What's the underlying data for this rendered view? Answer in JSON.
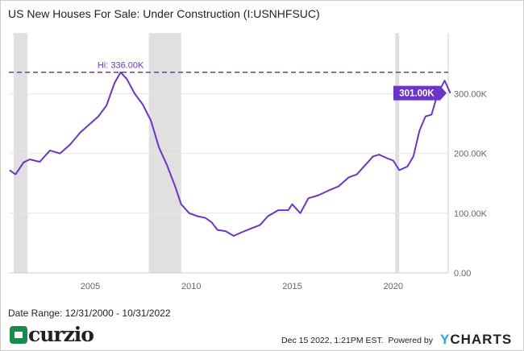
{
  "title": "US New Houses For Sale: Under Construction (I:USNHFSUC)",
  "footer": {
    "date_range": "Date Range: 12/31/2000 - 10/31/2022",
    "timestamp": "Dec 15 2022, 1:21PM EST.",
    "powered_by": "Powered by",
    "brand_y": "Y",
    "brand_rest": "CHARTS",
    "logo_text": "curzio"
  },
  "colors": {
    "line": "#6c35c9",
    "recession": "#e0e0e0",
    "grid": "#e6e6e6"
  },
  "chart_data": {
    "type": "line",
    "title": "US New Houses For Sale: Under Construction (I:USNHFSUC)",
    "x_ticks": [
      "2005",
      "2010",
      "2015",
      "2020"
    ],
    "y_ticks": [
      "0.00",
      "100.00K",
      "200.00K",
      "300.00K"
    ],
    "ylim": [
      0,
      350
    ],
    "xlim": [
      2000.9,
      2022.9
    ],
    "grid": true,
    "high_label": "Hi: 336.00K",
    "high_value": 336,
    "last_label": "301.00K",
    "last_value": 301,
    "recessions": [
      [
        2001.2,
        2001.9
      ],
      [
        2007.9,
        2009.5
      ],
      [
        2020.1,
        2020.3
      ]
    ],
    "series": [
      {
        "unit": "K",
        "points": [
          [
            2001.0,
            172
          ],
          [
            2001.3,
            165
          ],
          [
            2001.7,
            185
          ],
          [
            2002.0,
            190
          ],
          [
            2002.5,
            186
          ],
          [
            2003.0,
            205
          ],
          [
            2003.5,
            200
          ],
          [
            2004.0,
            215
          ],
          [
            2004.5,
            235
          ],
          [
            2005.0,
            250
          ],
          [
            2005.4,
            262
          ],
          [
            2005.8,
            280
          ],
          [
            2006.2,
            318
          ],
          [
            2006.5,
            336
          ],
          [
            2006.8,
            325
          ],
          [
            2007.2,
            300
          ],
          [
            2007.6,
            282
          ],
          [
            2008.0,
            255
          ],
          [
            2008.4,
            210
          ],
          [
            2008.8,
            180
          ],
          [
            2009.2,
            145
          ],
          [
            2009.5,
            115
          ],
          [
            2009.9,
            100
          ],
          [
            2010.3,
            95
          ],
          [
            2010.7,
            92
          ],
          [
            2011.0,
            85
          ],
          [
            2011.3,
            72
          ],
          [
            2011.7,
            70
          ],
          [
            2012.1,
            62
          ],
          [
            2012.5,
            68
          ],
          [
            2013.0,
            75
          ],
          [
            2013.4,
            80
          ],
          [
            2013.8,
            95
          ],
          [
            2014.3,
            105
          ],
          [
            2014.8,
            105
          ],
          [
            2015.0,
            115
          ],
          [
            2015.4,
            100
          ],
          [
            2015.8,
            125
          ],
          [
            2016.3,
            130
          ],
          [
            2016.8,
            138
          ],
          [
            2017.3,
            145
          ],
          [
            2017.8,
            160
          ],
          [
            2018.2,
            165
          ],
          [
            2018.6,
            180
          ],
          [
            2019.0,
            195
          ],
          [
            2019.3,
            198
          ],
          [
            2019.7,
            192
          ],
          [
            2020.0,
            188
          ],
          [
            2020.3,
            172
          ],
          [
            2020.7,
            178
          ],
          [
            2021.0,
            195
          ],
          [
            2021.3,
            238
          ],
          [
            2021.6,
            262
          ],
          [
            2021.9,
            265
          ],
          [
            2022.2,
            300
          ],
          [
            2022.55,
            322
          ],
          [
            2022.83,
            301
          ]
        ]
      }
    ]
  }
}
